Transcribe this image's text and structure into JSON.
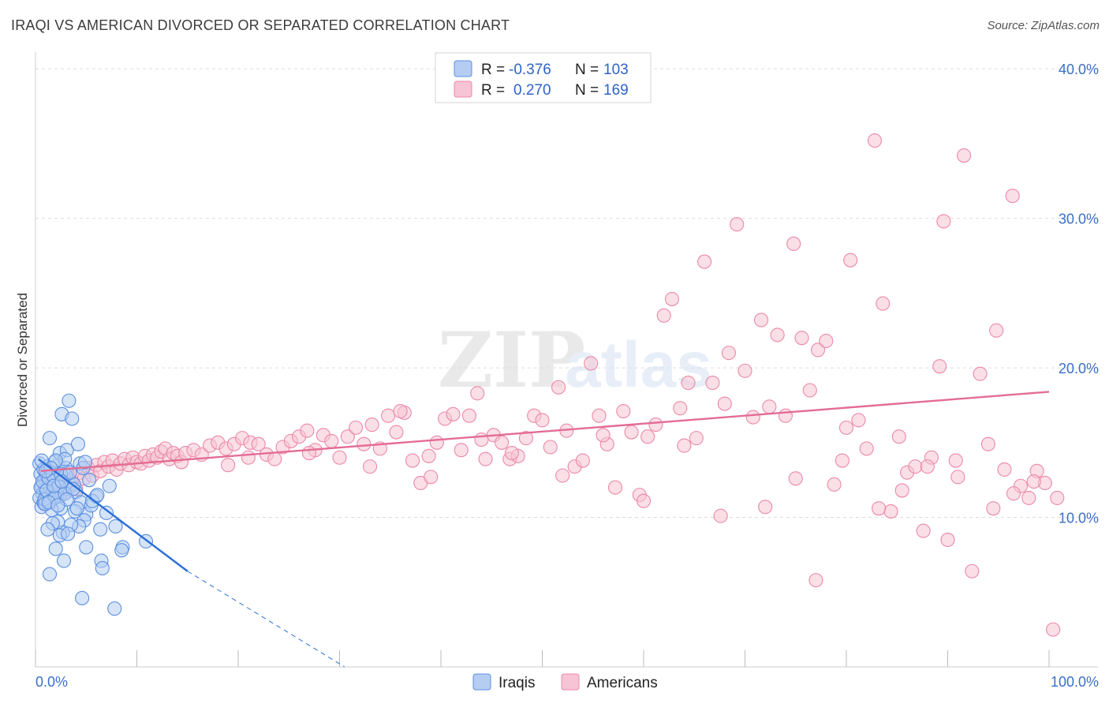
{
  "title": "IRAQI VS AMERICAN DIVORCED OR SEPARATED CORRELATION CHART",
  "source": "Source: ZipAtlas.com",
  "watermark": {
    "zip": "ZIP",
    "atlas": "atlas"
  },
  "colors": {
    "iraqis": "#5b8fe0",
    "iraqis_fill": "#b5cdf2",
    "iraqis_line": "#2a6fd6",
    "americans": "#ec88a8",
    "americans_fill": "#f6c4d4",
    "americans_line": "#e36c95",
    "axis_text": "#3b6fc6",
    "grid": "#dddddd"
  },
  "legend": {
    "rows": [
      {
        "r_label": "R =",
        "r_value": "-0.376",
        "n_label": "N =",
        "n_value": "103"
      },
      {
        "r_label": "R =",
        "r_value": "0.270",
        "n_label": "N =",
        "n_value": "169"
      }
    ]
  },
  "chart_data": {
    "type": "scatter",
    "title": "IRAQI VS AMERICAN DIVORCED OR SEPARATED CORRELATION CHART",
    "xlabel": "",
    "ylabel": "Divorced or Separated",
    "xlim": [
      0,
      100
    ],
    "ylim": [
      0,
      40.8
    ],
    "x_tick_labels": [
      {
        "value": 0,
        "label": "0.0%"
      },
      {
        "value": 100,
        "label": "100.0%"
      }
    ],
    "y_ticks": [
      {
        "value": 10,
        "label": "10.0%"
      },
      {
        "value": 20,
        "label": "20.0%"
      },
      {
        "value": 30,
        "label": "30.0%"
      },
      {
        "value": 40,
        "label": "40.0%"
      }
    ],
    "legend_position": "top-center",
    "series": [
      {
        "name": "Iraqis",
        "r": -0.376,
        "n": 103,
        "trend": {
          "x0": 0.3,
          "y0": 13.9,
          "x1": 15.0,
          "y1": 6.4,
          "dash_to_x": 30.5,
          "dash_to_y": -1.5
        },
        "points": [
          [
            0.4,
            13.6
          ],
          [
            0.5,
            12.9
          ],
          [
            0.6,
            12.1
          ],
          [
            0.7,
            11.6
          ],
          [
            0.8,
            13.2
          ],
          [
            0.9,
            12.5
          ],
          [
            1.0,
            11.9
          ],
          [
            1.1,
            12.8
          ],
          [
            1.2,
            13.4
          ],
          [
            1.3,
            12.2
          ],
          [
            0.4,
            11.3
          ],
          [
            0.6,
            10.7
          ],
          [
            0.8,
            11.0
          ],
          [
            1.0,
            10.9
          ],
          [
            1.2,
            11.5
          ],
          [
            1.4,
            12.0
          ],
          [
            1.5,
            12.7
          ],
          [
            1.6,
            13.0
          ],
          [
            1.8,
            12.4
          ],
          [
            2.0,
            11.8
          ],
          [
            2.1,
            12.9
          ],
          [
            2.2,
            13.5
          ],
          [
            2.3,
            12.3
          ],
          [
            2.4,
            11.4
          ],
          [
            2.5,
            10.6
          ],
          [
            2.6,
            11.7
          ],
          [
            2.8,
            12.6
          ],
          [
            3.0,
            13.3
          ],
          [
            3.2,
            11.9
          ],
          [
            3.4,
            12.2
          ],
          [
            0.5,
            12.0
          ],
          [
            0.7,
            12.4
          ],
          [
            0.9,
            11.2
          ],
          [
            1.1,
            11.8
          ],
          [
            1.3,
            12.6
          ],
          [
            1.5,
            11.1
          ],
          [
            1.7,
            12.8
          ],
          [
            1.9,
            13.7
          ],
          [
            2.1,
            11.5
          ],
          [
            2.3,
            12.1
          ],
          [
            1.4,
            15.3
          ],
          [
            2.4,
            14.3
          ],
          [
            3.1,
            14.5
          ],
          [
            4.2,
            14.9
          ],
          [
            3.3,
            17.8
          ],
          [
            2.6,
            16.9
          ],
          [
            3.6,
            16.6
          ],
          [
            2.9,
            13.9
          ],
          [
            3.8,
            12.2
          ],
          [
            4.0,
            11.7
          ],
          [
            4.5,
            11.0
          ],
          [
            5.0,
            10.2
          ],
          [
            5.5,
            10.8
          ],
          [
            6.0,
            11.4
          ],
          [
            7.3,
            12.1
          ],
          [
            7.0,
            10.3
          ],
          [
            4.8,
            9.8
          ],
          [
            4.3,
            9.4
          ],
          [
            3.5,
            9.5
          ],
          [
            2.7,
            9.0
          ],
          [
            2.2,
            9.7
          ],
          [
            1.7,
            9.6
          ],
          [
            1.2,
            9.2
          ],
          [
            2.0,
            7.9
          ],
          [
            2.8,
            7.1
          ],
          [
            2.4,
            8.8
          ],
          [
            3.2,
            8.9
          ],
          [
            1.4,
            6.2
          ],
          [
            5.0,
            8.0
          ],
          [
            6.4,
            9.2
          ],
          [
            7.9,
            9.4
          ],
          [
            8.6,
            8.0
          ],
          [
            8.5,
            7.8
          ],
          [
            10.9,
            8.4
          ],
          [
            6.5,
            7.1
          ],
          [
            6.6,
            6.6
          ],
          [
            4.6,
            4.6
          ],
          [
            7.8,
            3.9
          ],
          [
            3.9,
            10.4
          ],
          [
            4.1,
            10.6
          ],
          [
            5.6,
            11.1
          ],
          [
            3.0,
            12.8
          ],
          [
            2.5,
            12.9
          ],
          [
            1.9,
            11.3
          ],
          [
            1.6,
            10.5
          ],
          [
            0.9,
            10.9
          ],
          [
            1.3,
            11.0
          ],
          [
            1.8,
            12.1
          ],
          [
            2.9,
            11.6
          ],
          [
            3.7,
            11.9
          ],
          [
            4.4,
            13.6
          ],
          [
            4.7,
            13.3
          ],
          [
            3.4,
            13.0
          ],
          [
            2.0,
            13.8
          ],
          [
            1.5,
            13.3
          ],
          [
            0.6,
            13.8
          ],
          [
            1.0,
            13.1
          ],
          [
            2.6,
            12.4
          ],
          [
            3.1,
            11.2
          ],
          [
            4.9,
            13.7
          ],
          [
            5.3,
            12.5
          ],
          [
            6.1,
            11.5
          ],
          [
            2.2,
            10.8
          ]
        ]
      },
      {
        "name": "Americans",
        "r": 0.27,
        "n": 169,
        "trend": {
          "x0": 0.5,
          "y0": 13.1,
          "x1": 100,
          "y1": 18.4
        },
        "points": [
          [
            0.8,
            12.3
          ],
          [
            1.2,
            11.8
          ],
          [
            1.6,
            12.6
          ],
          [
            2.0,
            13.1
          ],
          [
            2.4,
            12.2
          ],
          [
            2.8,
            11.6
          ],
          [
            3.2,
            12.9
          ],
          [
            3.6,
            12.4
          ],
          [
            4.0,
            11.9
          ],
          [
            4.4,
            13.0
          ],
          [
            4.8,
            12.6
          ],
          [
            5.2,
            13.3
          ],
          [
            5.6,
            12.8
          ],
          [
            6.0,
            13.5
          ],
          [
            6.4,
            13.1
          ],
          [
            6.8,
            13.7
          ],
          [
            7.2,
            13.4
          ],
          [
            7.6,
            13.8
          ],
          [
            8.0,
            13.2
          ],
          [
            8.4,
            13.6
          ],
          [
            8.8,
            13.9
          ],
          [
            9.2,
            13.5
          ],
          [
            9.6,
            14.0
          ],
          [
            10.0,
            13.7
          ],
          [
            10.4,
            13.6
          ],
          [
            10.8,
            14.1
          ],
          [
            11.2,
            13.8
          ],
          [
            11.6,
            14.2
          ],
          [
            12.0,
            14.0
          ],
          [
            12.4,
            14.4
          ],
          [
            12.8,
            14.6
          ],
          [
            13.2,
            13.9
          ],
          [
            13.6,
            14.3
          ],
          [
            14.0,
            14.1
          ],
          [
            14.4,
            13.7
          ],
          [
            14.8,
            14.3
          ],
          [
            15.6,
            14.5
          ],
          [
            16.4,
            14.2
          ],
          [
            17.2,
            14.8
          ],
          [
            18.0,
            15.0
          ],
          [
            18.8,
            14.6
          ],
          [
            19.6,
            14.9
          ],
          [
            20.4,
            15.3
          ],
          [
            21.2,
            15.0
          ],
          [
            22.0,
            14.9
          ],
          [
            22.8,
            14.2
          ],
          [
            23.6,
            13.9
          ],
          [
            24.4,
            14.7
          ],
          [
            25.2,
            15.1
          ],
          [
            26.0,
            15.4
          ],
          [
            26.8,
            15.8
          ],
          [
            27.6,
            14.5
          ],
          [
            28.4,
            15.5
          ],
          [
            29.2,
            15.1
          ],
          [
            30.0,
            14.0
          ],
          [
            30.8,
            15.4
          ],
          [
            31.6,
            16.0
          ],
          [
            32.4,
            14.9
          ],
          [
            33.2,
            16.2
          ],
          [
            34.0,
            14.6
          ],
          [
            34.8,
            16.8
          ],
          [
            35.6,
            15.7
          ],
          [
            36.4,
            17.0
          ],
          [
            37.2,
            13.8
          ],
          [
            38.0,
            12.3
          ],
          [
            38.8,
            14.1
          ],
          [
            39.6,
            15.0
          ],
          [
            40.4,
            16.6
          ],
          [
            41.2,
            16.9
          ],
          [
            42.0,
            14.5
          ],
          [
            42.8,
            16.8
          ],
          [
            43.6,
            18.3
          ],
          [
            44.4,
            13.9
          ],
          [
            45.2,
            15.5
          ],
          [
            46.0,
            15.0
          ],
          [
            46.8,
            13.9
          ],
          [
            47.6,
            14.1
          ],
          [
            48.4,
            15.3
          ],
          [
            49.2,
            16.8
          ],
          [
            50.0,
            16.5
          ],
          [
            50.8,
            14.7
          ],
          [
            51.6,
            18.7
          ],
          [
            52.4,
            15.8
          ],
          [
            53.2,
            13.4
          ],
          [
            54.0,
            13.8
          ],
          [
            54.8,
            20.3
          ],
          [
            55.6,
            16.8
          ],
          [
            56.4,
            14.9
          ],
          [
            57.2,
            12.0
          ],
          [
            58.0,
            17.1
          ],
          [
            58.8,
            15.7
          ],
          [
            59.6,
            11.5
          ],
          [
            60.4,
            15.4
          ],
          [
            61.2,
            16.2
          ],
          [
            62.0,
            23.5
          ],
          [
            62.8,
            24.6
          ],
          [
            63.6,
            17.3
          ],
          [
            64.4,
            19.0
          ],
          [
            65.2,
            15.3
          ],
          [
            66.0,
            27.1
          ],
          [
            66.8,
            19.0
          ],
          [
            67.6,
            10.1
          ],
          [
            68.4,
            21.0
          ],
          [
            69.2,
            29.6
          ],
          [
            70.0,
            19.8
          ],
          [
            70.8,
            16.7
          ],
          [
            71.6,
            23.2
          ],
          [
            72.4,
            17.4
          ],
          [
            73.2,
            22.2
          ],
          [
            74.0,
            16.8
          ],
          [
            74.8,
            28.3
          ],
          [
            75.6,
            22.0
          ],
          [
            76.4,
            18.5
          ],
          [
            77.2,
            21.2
          ],
          [
            78.0,
            21.8
          ],
          [
            78.8,
            12.2
          ],
          [
            79.6,
            13.8
          ],
          [
            80.4,
            27.2
          ],
          [
            81.2,
            16.5
          ],
          [
            82.0,
            14.6
          ],
          [
            82.8,
            35.2
          ],
          [
            83.6,
            24.3
          ],
          [
            84.4,
            10.4
          ],
          [
            85.2,
            15.4
          ],
          [
            86.0,
            13.0
          ],
          [
            86.8,
            13.4
          ],
          [
            87.6,
            9.1
          ],
          [
            88.4,
            14.0
          ],
          [
            89.2,
            20.1
          ],
          [
            90.0,
            8.5
          ],
          [
            90.8,
            13.8
          ],
          [
            91.6,
            34.2
          ],
          [
            92.4,
            6.4
          ],
          [
            93.2,
            19.6
          ],
          [
            94.0,
            14.9
          ],
          [
            94.8,
            22.5
          ],
          [
            95.6,
            13.2
          ],
          [
            96.4,
            31.5
          ],
          [
            97.2,
            12.1
          ],
          [
            98.0,
            11.3
          ],
          [
            98.8,
            13.1
          ],
          [
            99.6,
            12.3
          ],
          [
            100.4,
            2.5
          ],
          [
            101.2,
            11.3
          ],
          [
            77.0,
            5.8
          ],
          [
            83.2,
            10.6
          ],
          [
            88.0,
            13.4
          ],
          [
            96.5,
            11.6
          ],
          [
            89.6,
            29.8
          ],
          [
            60.0,
            11.1
          ],
          [
            72.0,
            10.7
          ],
          [
            36.0,
            17.1
          ],
          [
            44.0,
            15.2
          ],
          [
            52.0,
            12.8
          ],
          [
            56.0,
            15.5
          ],
          [
            64.0,
            14.8
          ],
          [
            68.0,
            17.6
          ],
          [
            75.0,
            12.6
          ],
          [
            80.0,
            16.0
          ],
          [
            85.5,
            11.8
          ],
          [
            91.0,
            12.7
          ],
          [
            94.5,
            10.6
          ],
          [
            98.5,
            12.4
          ],
          [
            47.0,
            14.3
          ],
          [
            39.0,
            12.7
          ],
          [
            33.0,
            13.4
          ],
          [
            27.0,
            14.3
          ],
          [
            21.0,
            14.0
          ],
          [
            19.0,
            13.5
          ]
        ]
      }
    ]
  },
  "bottom_legend": {
    "items": [
      {
        "label": "Iraqis"
      },
      {
        "label": "Americans"
      }
    ]
  }
}
